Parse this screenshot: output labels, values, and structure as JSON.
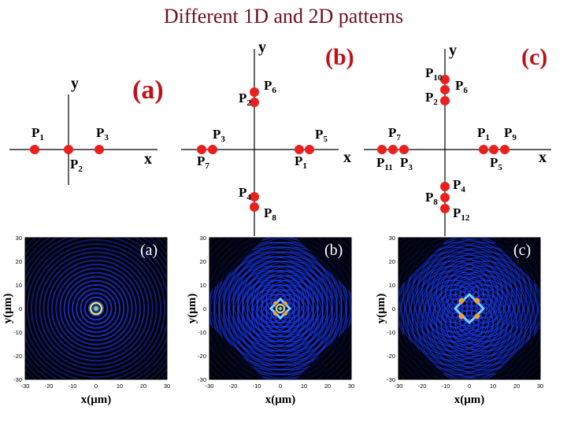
{
  "title": "Different 1D and 2D patterns",
  "colors": {
    "title": "#6e0f1a",
    "dot": "#e8201e",
    "panel_label": "#c0101a",
    "axis": "#000000",
    "plot_bg": "#000000",
    "ring": "#1a3cff"
  },
  "schematics": {
    "a": {
      "panel_label": "(a)",
      "x_label": "x",
      "y_label": "y",
      "points": [
        {
          "label": "P",
          "sub": "1"
        },
        {
          "label": "P",
          "sub": "2"
        },
        {
          "label": "P",
          "sub": "3"
        }
      ]
    },
    "b": {
      "panel_label": "(b)",
      "x_label": "x",
      "y_label": "y",
      "points": [
        {
          "label": "P",
          "sub": "6"
        },
        {
          "label": "P",
          "sub": "2"
        },
        {
          "label": "P",
          "sub": "3"
        },
        {
          "label": "P",
          "sub": "7"
        },
        {
          "label": "P",
          "sub": "5"
        },
        {
          "label": "P",
          "sub": "1"
        },
        {
          "label": "P",
          "sub": "4"
        },
        {
          "label": "P",
          "sub": "8"
        }
      ]
    },
    "c": {
      "panel_label": "(c)",
      "x_label": "x",
      "y_label": "y",
      "points": [
        {
          "label": "P",
          "sub": "10"
        },
        {
          "label": "P",
          "sub": "6"
        },
        {
          "label": "P",
          "sub": "2"
        },
        {
          "label": "P",
          "sub": "7"
        },
        {
          "label": "P",
          "sub": "11"
        },
        {
          "label": "P",
          "sub": "3"
        },
        {
          "label": "P",
          "sub": "1"
        },
        {
          "label": "P",
          "sub": "9"
        },
        {
          "label": "P",
          "sub": "5"
        },
        {
          "label": "P",
          "sub": "4"
        },
        {
          "label": "P",
          "sub": "8"
        },
        {
          "label": "P",
          "sub": "12"
        }
      ]
    }
  },
  "plots": [
    {
      "panel_label": "(a)",
      "xlabel": "x(μm)",
      "ylabel": "y(μm)",
      "xticks": [
        "-30",
        "-20",
        "-10",
        "0",
        "10",
        "20",
        "30"
      ],
      "yticks": [
        "30",
        "20",
        "10",
        "0",
        "-10",
        "-20",
        "-30"
      ],
      "pattern": "rings"
    },
    {
      "panel_label": "(b)",
      "xlabel": "x(μm)",
      "ylabel": "y(μm)",
      "xticks": [
        "-30",
        "-20",
        "-10",
        "0",
        "10",
        "20",
        "30"
      ],
      "yticks": [
        "30",
        "20",
        "10",
        "0",
        "-10",
        "-20",
        "-30"
      ],
      "pattern": "cross"
    },
    {
      "panel_label": "(c)",
      "xlabel": "x(μm)",
      "ylabel": "y(μm)",
      "xticks": [
        "-30",
        "-20",
        "-10",
        "0",
        "10",
        "20",
        "30"
      ],
      "yticks": [
        "30",
        "20",
        "10",
        "0",
        "-10",
        "-20",
        "-30"
      ],
      "pattern": "cross-wide"
    }
  ]
}
